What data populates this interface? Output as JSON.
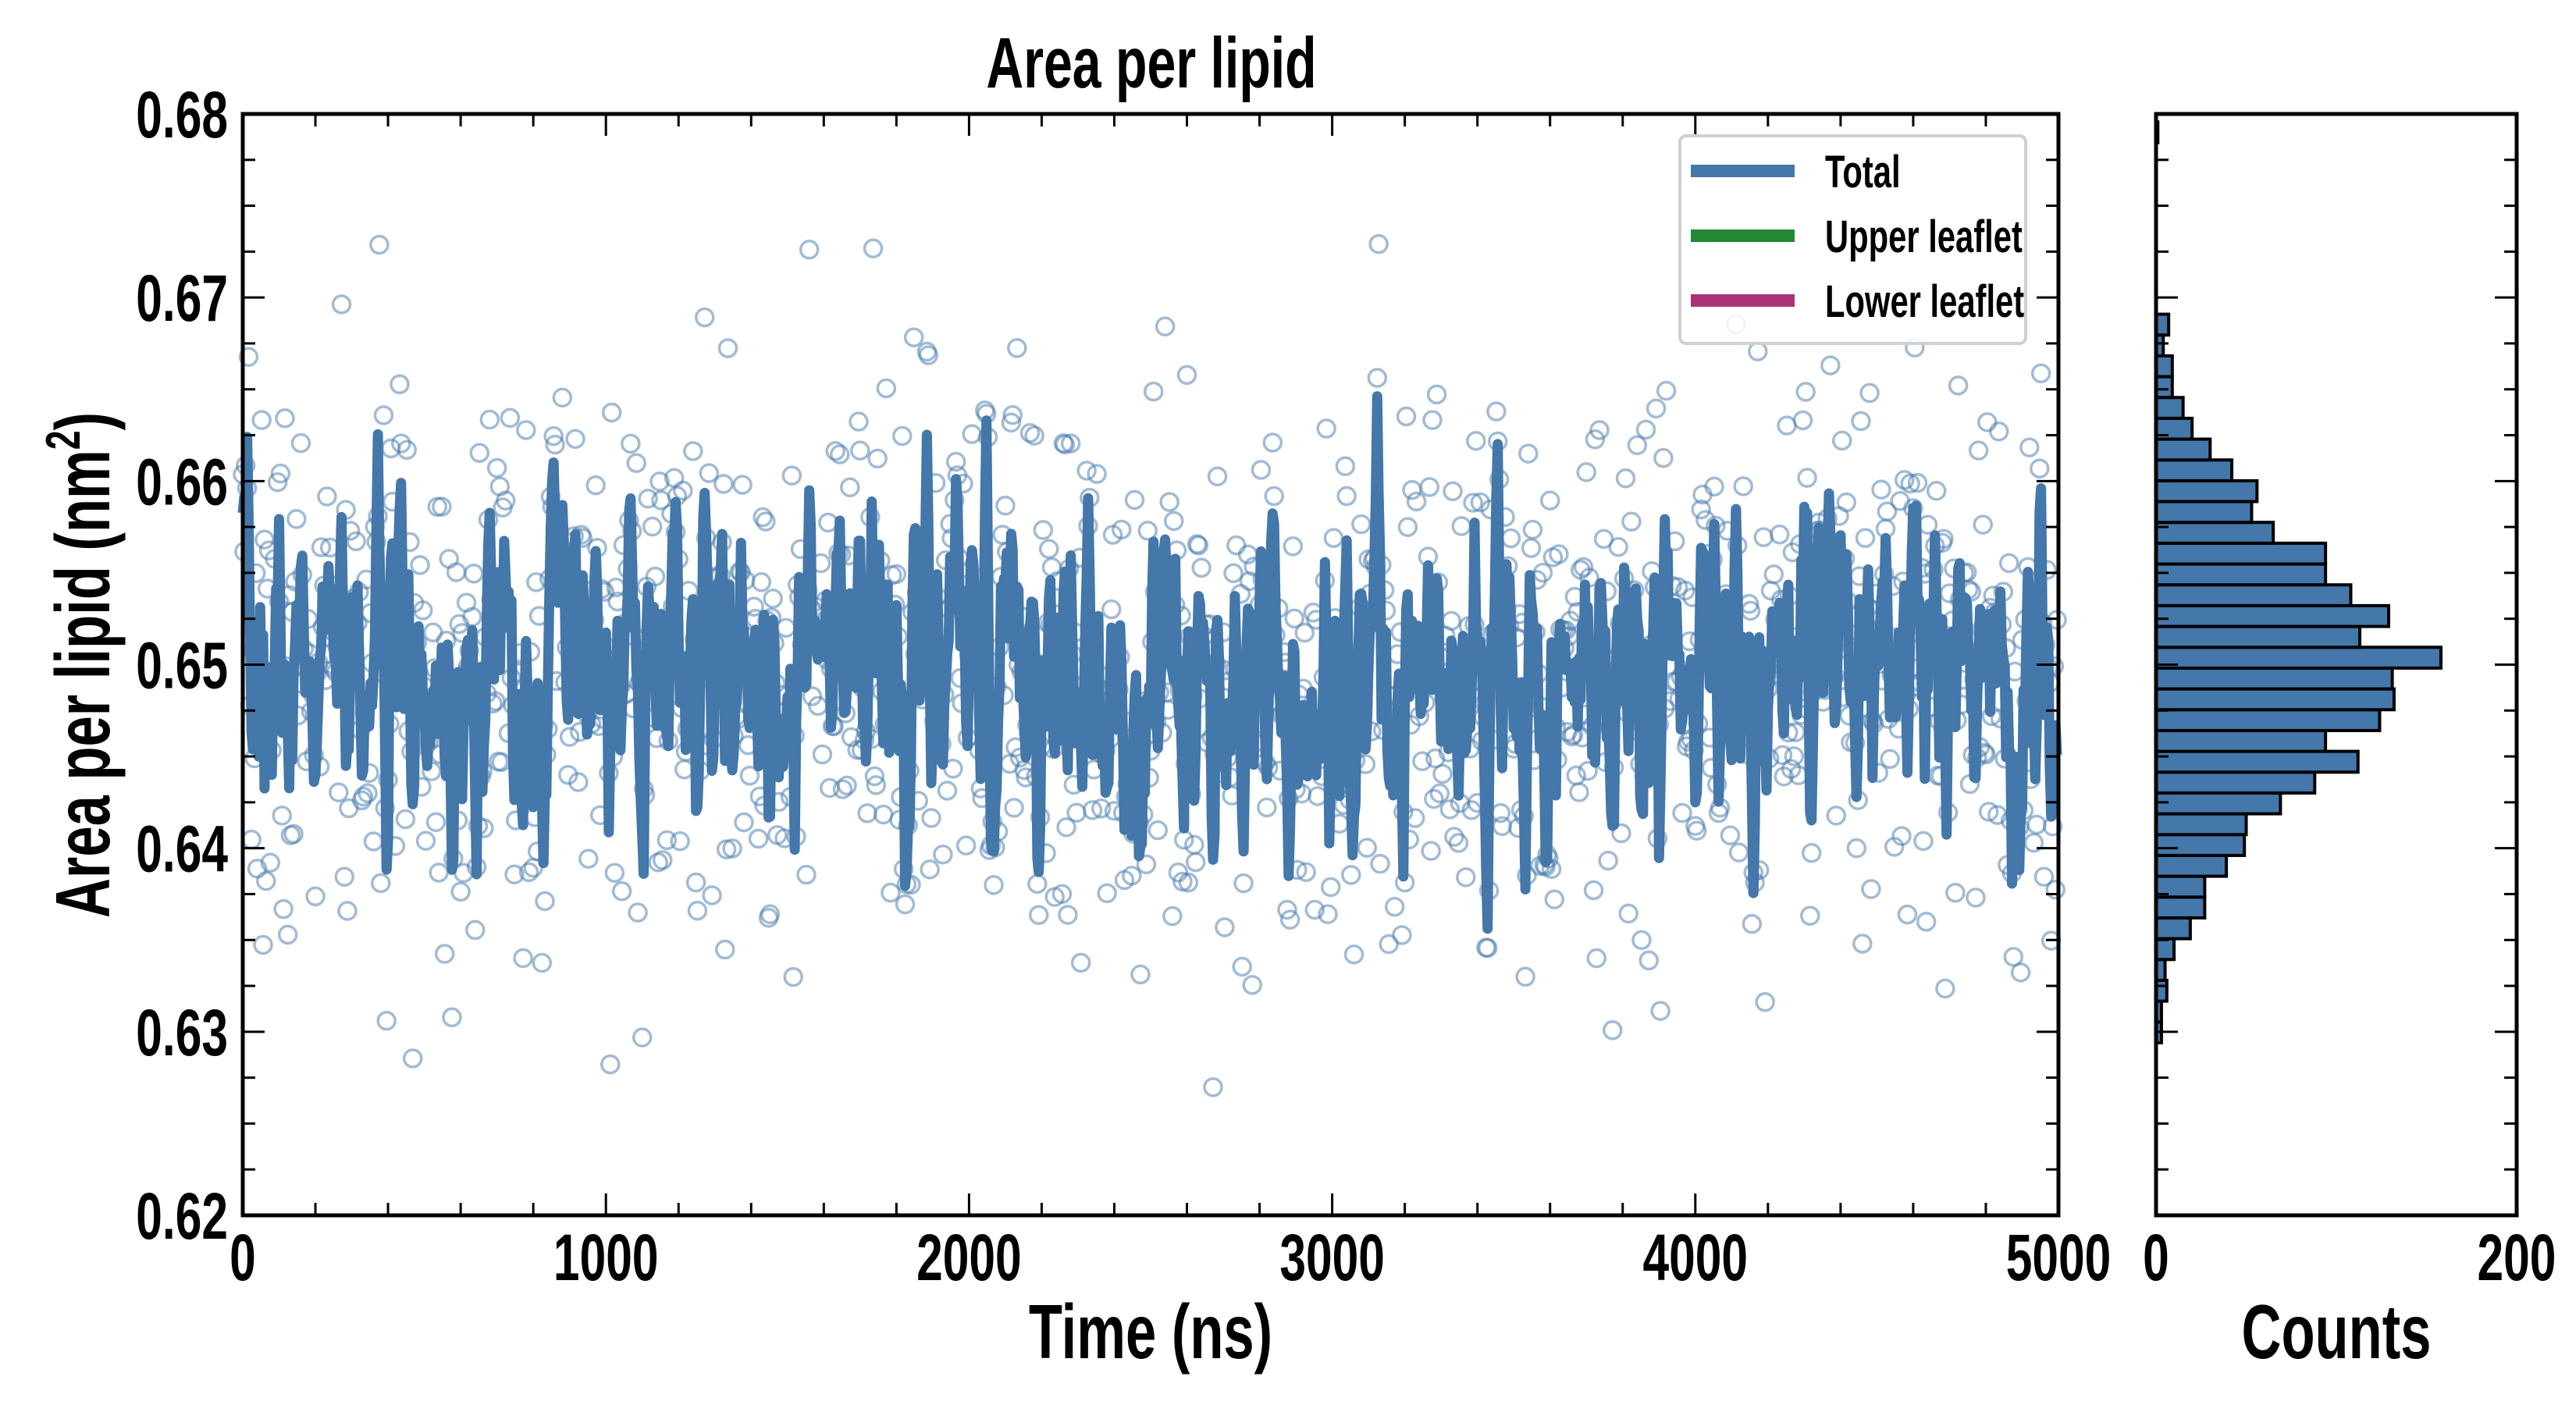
{
  "chart_data": [
    {
      "type": "scatter",
      "title": "Area per lipid",
      "xlabel": "Time (ns)",
      "ylabel": "Area per lipid (nm",
      "ylabel_superscript": "2",
      "ylabel_close": ")",
      "xlim": [
        0,
        5000
      ],
      "ylim": [
        0.62,
        0.68
      ],
      "xticks": [
        "0",
        "1000",
        "2000",
        "3000",
        "4000",
        "5000"
      ],
      "xtick_values": [
        0,
        1000,
        2000,
        3000,
        4000,
        5000
      ],
      "yticks": [
        "0.62",
        "0.63",
        "0.64",
        "0.65",
        "0.66",
        "0.67",
        "0.68"
      ],
      "ytick_values": [
        0.62,
        0.63,
        0.64,
        0.65,
        0.66,
        0.67,
        0.68
      ],
      "grid": false,
      "scatter_generation": {
        "n": 1250,
        "dt_ns": 4,
        "mean": 0.6495,
        "std": 0.0075,
        "seed": 7
      },
      "line_smoothing_window": 3,
      "colors": {
        "total": "#4477aa",
        "upper": "#228833",
        "lower": "#aa3377"
      },
      "legend": {
        "placement": "top-right",
        "entries": [
          {
            "label": "Total",
            "color": "#4477aa"
          },
          {
            "label": "Upper leaflet",
            "color": "#228833"
          },
          {
            "label": "Lower leaflet",
            "color": "#aa3377"
          }
        ]
      }
    },
    {
      "type": "bar",
      "orientation": "horizontal",
      "xlabel": "Counts",
      "xlim": [
        0,
        200
      ],
      "xticks": [
        "0",
        "200"
      ],
      "xtick_values": [
        0,
        200
      ],
      "ylim": [
        0.62,
        0.68
      ],
      "bin_start": 0.6294,
      "bin_width": 0.001134,
      "counts": [
        3,
        3,
        6,
        5,
        10,
        19,
        27,
        27,
        39,
        49,
        50,
        69,
        88,
        112,
        94,
        124,
        132,
        131,
        158,
        113,
        129,
        108,
        94,
        94,
        65,
        53,
        56,
        42,
        30,
        20,
        15,
        9,
        9,
        4,
        7
      ],
      "outlier_bin": {
        "value": 0.679,
        "count": 1
      },
      "color": "#4477aa"
    }
  ]
}
